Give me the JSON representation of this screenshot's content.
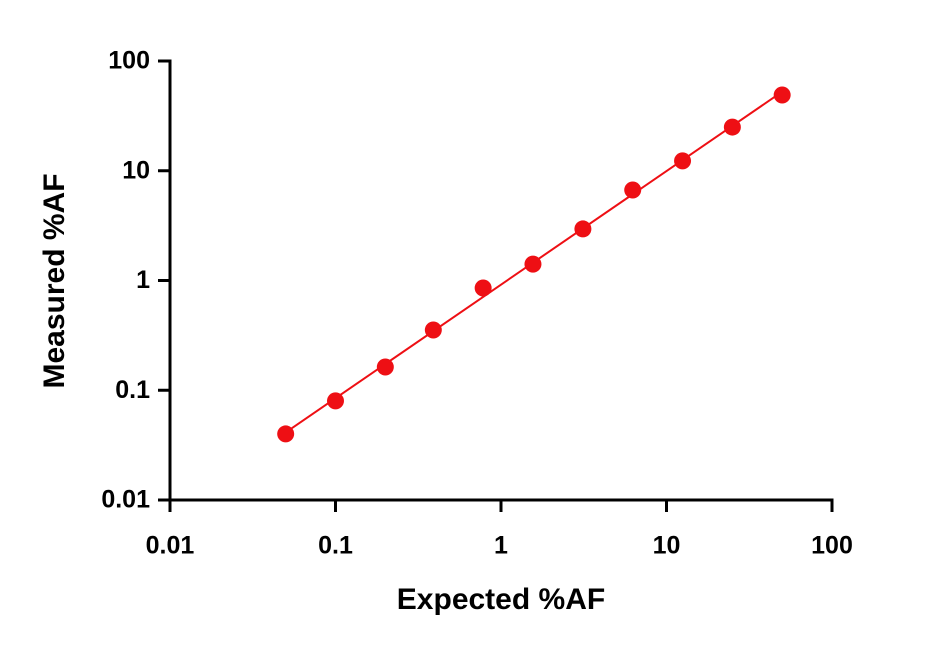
{
  "chart_data": {
    "type": "scatter",
    "xlabel": "Expected %AF",
    "ylabel": "Measured %AF",
    "log_x": true,
    "log_y": true,
    "fit_line": true,
    "series": [
      {
        "color": "#ee0f14",
        "x": [
          0.05,
          0.1,
          0.2,
          0.39,
          0.78,
          1.56,
          3.125,
          6.25,
          12.5,
          25,
          50
        ],
        "values": [
          0.04,
          0.08,
          0.163,
          0.354,
          0.855,
          1.41,
          2.95,
          6.68,
          12.3,
          25,
          49
        ]
      }
    ],
    "xlim": [
      0.01,
      100
    ],
    "xticks": [
      0.01,
      0.1,
      1,
      10,
      100
    ],
    "ylim": [
      0.01,
      100
    ],
    "yticks": [
      0.01,
      0.1,
      1,
      10,
      100
    ]
  }
}
